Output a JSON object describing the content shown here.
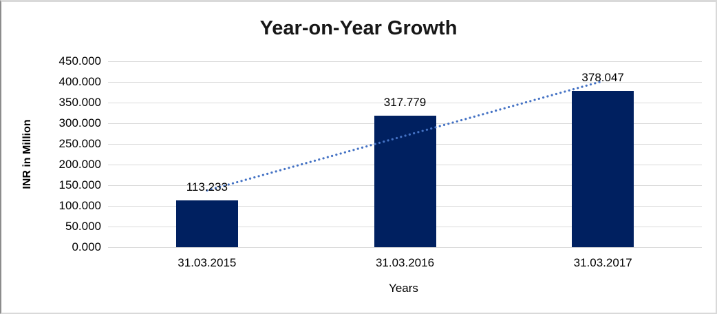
{
  "chart_data": {
    "type": "bar",
    "title": "Year-on-Year Growth",
    "xlabel": "Years",
    "ylabel": "INR in Million",
    "categories": [
      "31.03.2015",
      "31.03.2016",
      "31.03.2017"
    ],
    "values": [
      113.233,
      317.779,
      378.047
    ],
    "data_labels": [
      "113.233",
      "317.779",
      "378.047"
    ],
    "ylim": [
      0,
      450
    ],
    "ytick_step": 50,
    "ytick_labels": [
      "450.000",
      "400.000",
      "350.000",
      "300.000",
      "250.000",
      "200.000",
      "150.000",
      "100.000",
      "50.000",
      "0.000"
    ],
    "grid": true,
    "legend": "none",
    "trendline": {
      "type": "linear",
      "style": "dotted"
    },
    "colors": {
      "bar": "#002060",
      "trendline": "#4472C4",
      "gridline": "#d9d9d9",
      "text": "#000000"
    }
  }
}
